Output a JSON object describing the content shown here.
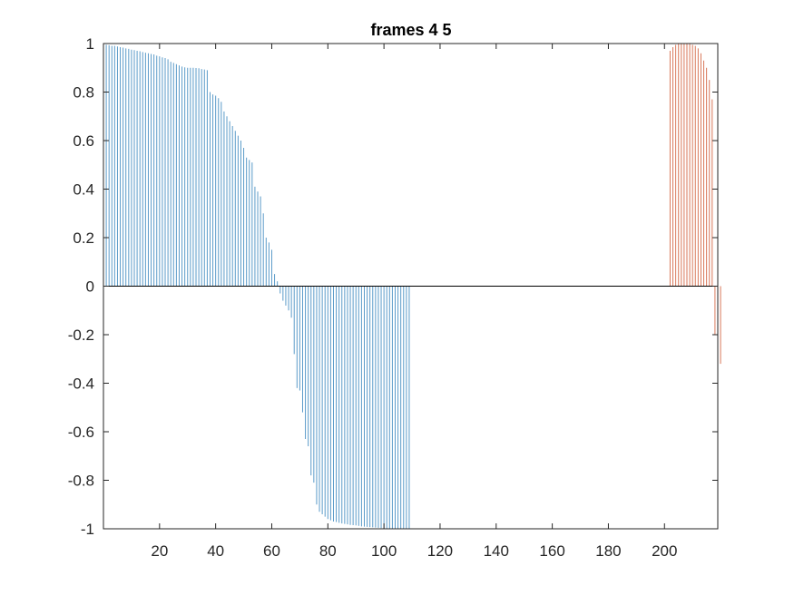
{
  "chart_data": {
    "type": "bar",
    "title": "frames 4 5",
    "xlabel": "",
    "ylabel": "",
    "xlim": [
      0,
      219
    ],
    "ylim": [
      -1,
      1
    ],
    "x_ticks": [
      "20",
      "40",
      "60",
      "80",
      "100",
      "120",
      "140",
      "160",
      "180",
      "200"
    ],
    "y_ticks": [
      "-1",
      "-0.8",
      "-0.6",
      "-0.4",
      "-0.2",
      "0",
      "0.2",
      "0.4",
      "0.6",
      "0.8",
      "1"
    ],
    "grid": false,
    "baseline": 0,
    "series": [
      {
        "color": "#5b9bc9",
        "x_start": 1,
        "values": [
          0.995,
          0.993,
          0.99,
          0.99,
          0.988,
          0.985,
          0.983,
          0.98,
          0.978,
          0.975,
          0.973,
          0.97,
          0.968,
          0.965,
          0.962,
          0.96,
          0.957,
          0.955,
          0.95,
          0.947,
          0.943,
          0.94,
          0.935,
          0.925,
          0.92,
          0.915,
          0.91,
          0.905,
          0.902,
          0.9,
          0.9,
          0.9,
          0.899,
          0.898,
          0.895,
          0.893,
          0.89,
          0.8,
          0.79,
          0.785,
          0.775,
          0.76,
          0.72,
          0.7,
          0.68,
          0.66,
          0.64,
          0.62,
          0.6,
          0.57,
          0.53,
          0.52,
          0.51,
          0.41,
          0.39,
          0.37,
          0.3,
          0.2,
          0.18,
          0.15,
          0.05,
          0.02,
          -0.03,
          -0.06,
          -0.08,
          -0.1,
          -0.13,
          -0.28,
          -0.42,
          -0.43,
          -0.52,
          -0.63,
          -0.66,
          -0.78,
          -0.81,
          -0.9,
          -0.93,
          -0.94,
          -0.95,
          -0.96,
          -0.965,
          -0.97,
          -0.972,
          -0.975,
          -0.978,
          -0.98,
          -0.982,
          -0.984,
          -0.985,
          -0.986,
          -0.988,
          -0.99,
          -0.991,
          -0.992,
          -0.993,
          -0.994,
          -0.995,
          -0.996,
          -0.997,
          -0.998,
          -0.998,
          -0.999,
          -0.999,
          -0.999,
          -1.0,
          -1.0,
          -1.0,
          -1.0,
          -1.0
        ]
      },
      {
        "color": "#d9785a",
        "x_start": 202,
        "values": [
          0.97,
          0.985,
          0.995,
          1.0,
          1.0,
          1.0,
          1.0,
          1.0,
          0.995,
          0.99,
          0.98,
          0.96,
          0.93,
          0.9,
          0.85,
          0.77,
          -0.2,
          -0.25,
          -0.32
        ]
      }
    ]
  }
}
